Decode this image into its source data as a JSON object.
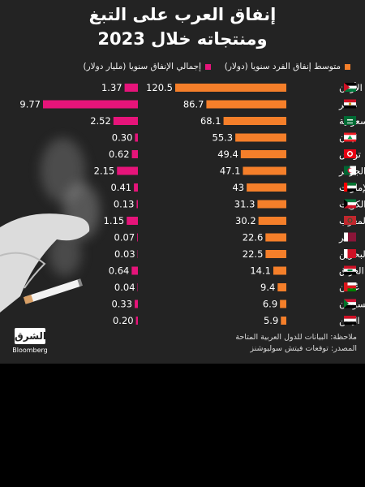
{
  "header": {
    "title_line1": "إنفاق العرب على التبغ",
    "title_line2": "ومنتجاته خلال 2023"
  },
  "legend": {
    "per_capita": "متوسط إنفاق الفرد سنويا (دولار)",
    "total": "إجمالي الإنفاق سنويا (مليار دولار)"
  },
  "colors": {
    "per_capita": "#f57f2a",
    "total": "#e6147a",
    "background": "#232323"
  },
  "chart_data": {
    "type": "bar",
    "title": "إنفاق العرب على التبغ ومنتجاته خلال 2023",
    "categories": [
      "الأردن",
      "مصر",
      "السعودية",
      "لبنان",
      "تونس",
      "الجزائر",
      "الإمارات",
      "الكويت",
      "المغرب",
      "قطر",
      "البحرين",
      "العراق",
      "عُمان",
      "السودان",
      "اليمن"
    ],
    "flags": [
      "jordan",
      "egypt",
      "saudi-arabia",
      "lebanon",
      "tunisia",
      "algeria",
      "uae",
      "kuwait",
      "morocco",
      "qatar",
      "bahrain",
      "iraq",
      "oman",
      "sudan",
      "yemen"
    ],
    "series": [
      {
        "name": "متوسط إنفاق الفرد سنويا (دولار)",
        "values": [
          120.5,
          86.7,
          68.1,
          55.3,
          49.4,
          47.1,
          43,
          31.3,
          30.2,
          22.6,
          22.5,
          14.1,
          9.4,
          6.9,
          5.9
        ]
      },
      {
        "name": "إجمالي الإنفاق سنويا (مليار دولار)",
        "values": [
          1.37,
          9.77,
          2.52,
          0.3,
          0.62,
          2.15,
          0.41,
          0.13,
          1.15,
          0.07,
          0.03,
          0.64,
          0.04,
          0.33,
          0.2
        ]
      }
    ],
    "labels_per_capita": [
      "120.5",
      "86.7",
      "68.1",
      "55.3",
      "49.4",
      "47.1",
      "43",
      "31.3",
      "30.2",
      "22.6",
      "22.5",
      "14.1",
      "9.4",
      "6.9",
      "5.9"
    ],
    "labels_total": [
      "1.37",
      "9.77",
      "2.52",
      "0.30",
      "0.62",
      "2.15",
      "0.41",
      "0.13",
      "1.15",
      "0.07",
      "0.03",
      "0.64",
      "0.04",
      "0.33",
      "0.20"
    ]
  },
  "footer": {
    "note": "ملاحظة: البيانات للدول العربية المتاحة",
    "source": "المصدر: توقعات فيتش سوليوشنز",
    "logo_main": "الشرق",
    "logo_sub": "Bloomberg"
  }
}
